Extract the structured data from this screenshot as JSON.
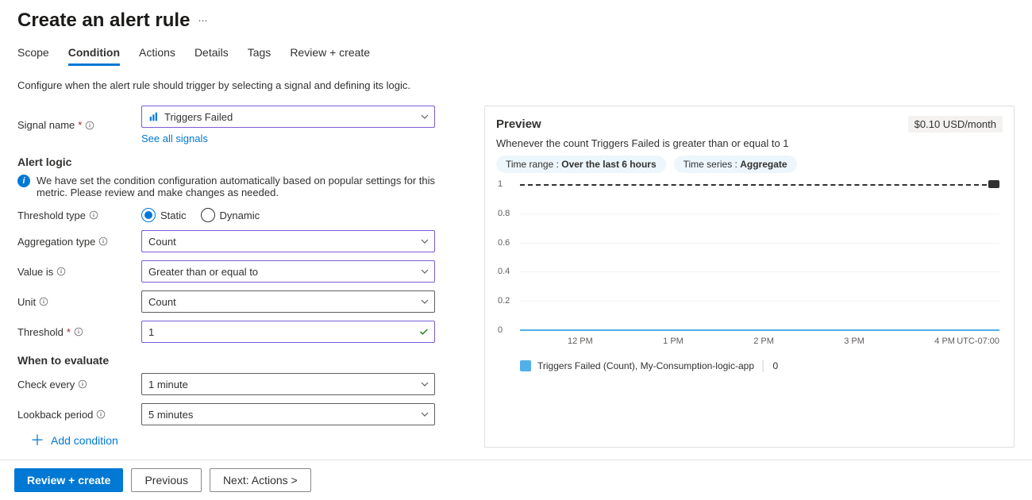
{
  "page": {
    "title": "Create an alert rule",
    "description": "Configure when the alert rule should trigger by selecting a signal and defining its logic."
  },
  "tabs": {
    "scope": "Scope",
    "condition": "Condition",
    "actions": "Actions",
    "details": "Details",
    "tags": "Tags",
    "review": "Review + create",
    "active": "condition"
  },
  "form": {
    "signal_name_label": "Signal name",
    "signal_name_value": "Triggers Failed",
    "see_all_signals": "See all signals",
    "alert_logic_heading": "Alert logic",
    "info_text": "We have set the condition configuration automatically based on popular settings for this metric. Please review and make changes as needed.",
    "threshold_type_label": "Threshold type",
    "threshold_type_options": {
      "static": "Static",
      "dynamic": "Dynamic"
    },
    "threshold_type_value": "static",
    "aggregation_type_label": "Aggregation type",
    "aggregation_type_value": "Count",
    "value_is_label": "Value is",
    "value_is_value": "Greater than or equal to",
    "unit_label": "Unit",
    "unit_value": "Count",
    "threshold_label": "Threshold",
    "threshold_value": "1",
    "when_to_evaluate_heading": "When to evaluate",
    "check_every_label": "Check every",
    "check_every_value": "1 minute",
    "lookback_label": "Lookback period",
    "lookback_value": "5 minutes",
    "add_condition": "Add condition"
  },
  "preview": {
    "heading": "Preview",
    "cost": "$0.10 USD/month",
    "description": "Whenever the count Triggers Failed is greater than or equal to 1",
    "pill_timerange_label": "Time range : ",
    "pill_timerange_value": "Over the last 6 hours",
    "pill_timeseries_label": "Time series : ",
    "pill_timeseries_value": "Aggregate",
    "legend_label": "Triggers Failed (Count), My-Consumption-logic-app",
    "legend_value": "0",
    "timezone": "UTC-07:00"
  },
  "chart": {
    "type": "line",
    "background_color": "#ffffff",
    "grid_color": "#f3f2f1",
    "ylim": [
      0,
      1
    ],
    "ytick_step": 0.2,
    "yticks": [
      "0",
      "0.2",
      "0.4",
      "0.6",
      "0.8",
      "1"
    ],
    "xticks": [
      "12 PM",
      "1 PM",
      "2 PM",
      "3 PM",
      "4 PM"
    ],
    "threshold_line_value": 1,
    "threshold_line_color": "#323130",
    "threshold_line_dash": true,
    "series_color": "#50b0e8",
    "series_value_constant": 0,
    "label_fontsize": 11,
    "label_color": "#605e5c"
  },
  "footer": {
    "review": "Review + create",
    "previous": "Previous",
    "next": "Next: Actions >"
  }
}
